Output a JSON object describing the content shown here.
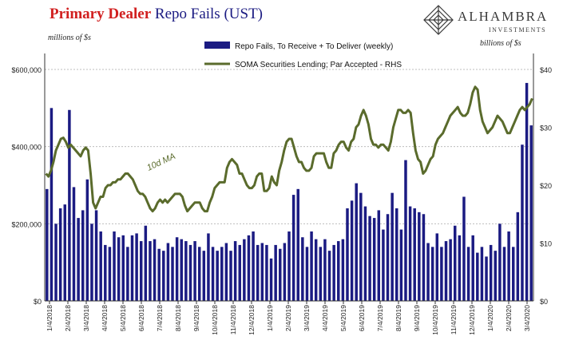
{
  "header": {
    "title_part1": "Primary Dealer",
    "title_part2": "Repo Fails (UST)",
    "left_unit": "millions of $s",
    "right_unit": "billions of $s"
  },
  "logo": {
    "name": "ALHAMBRA",
    "sub": "INVESTMENTS"
  },
  "colors": {
    "bars": "#1b1b82",
    "line": "#5a6b2c",
    "grid": "#bdbdbd",
    "title_red": "#d11f1f",
    "title_blue": "#1b1b82"
  },
  "chart_data": {
    "type": "bar",
    "title": "Primary Dealer Repo Fails (UST)",
    "ylabel": "millions of $s",
    "y2label": "billions of $s",
    "ylim": [
      0,
      600000
    ],
    "y2lim": [
      0,
      40
    ],
    "y_ticks": [
      "$0",
      "$200,000",
      "$400,000",
      "$600,000"
    ],
    "y2_ticks": [
      "$0",
      "$10",
      "$20",
      "$30",
      "$40"
    ],
    "x_ticks": [
      "1/4/2018",
      "2/4/2018",
      "3/4/2018",
      "4/4/2018",
      "5/4/2018",
      "6/4/2018",
      "7/4/2018",
      "8/4/2018",
      "9/4/2018",
      "10/4/2018",
      "11/4/2018",
      "12/4/2018",
      "1/4/2019",
      "2/4/2019",
      "3/4/2019",
      "4/4/2019",
      "5/4/2019",
      "6/4/2019",
      "7/4/2019",
      "8/4/2019",
      "9/4/2019",
      "10/4/2019",
      "11/4/2019",
      "12/4/2019",
      "1/4/2020",
      "2/4/2020",
      "3/4/2020"
    ],
    "legend_position": "top-center",
    "annotation": "10d MA",
    "series": [
      {
        "name": "Repo Fails, To Receive + To Deliver (weekly)",
        "kind": "bar",
        "axis": "left",
        "values": [
          290000,
          500000,
          200000,
          240000,
          250000,
          495000,
          295000,
          215000,
          235000,
          315000,
          200000,
          235000,
          180000,
          145000,
          140000,
          180000,
          165000,
          170000,
          140000,
          170000,
          175000,
          155000,
          195000,
          155000,
          160000,
          135000,
          130000,
          150000,
          140000,
          165000,
          160000,
          155000,
          145000,
          155000,
          140000,
          130000,
          175000,
          140000,
          130000,
          140000,
          150000,
          130000,
          155000,
          145000,
          160000,
          170000,
          180000,
          145000,
          150000,
          145000,
          110000,
          145000,
          135000,
          150000,
          180000,
          275000,
          290000,
          165000,
          140000,
          180000,
          160000,
          140000,
          160000,
          130000,
          145000,
          155000,
          160000,
          240000,
          260000,
          305000,
          280000,
          245000,
          220000,
          215000,
          235000,
          185000,
          225000,
          280000,
          240000,
          185000,
          365000,
          245000,
          240000,
          230000,
          225000,
          150000,
          140000,
          175000,
          140000,
          155000,
          160000,
          195000,
          170000,
          270000,
          140000,
          170000,
          125000,
          140000,
          115000,
          145000,
          130000,
          200000,
          140000,
          180000,
          140000,
          230000,
          405000,
          565000,
          455000
        ]
      },
      {
        "name": "SOMA Securities Lending; Par Accepted - RHS",
        "kind": "line",
        "axis": "right",
        "values": [
          22,
          21.5,
          22.5,
          24,
          26,
          27,
          28,
          28.2,
          27.5,
          26.5,
          27,
          26.5,
          26,
          25.5,
          25,
          26,
          26.5,
          26,
          22,
          17,
          16,
          17,
          18,
          18,
          19.5,
          20,
          20,
          20.5,
          20.5,
          21,
          21,
          21.5,
          22,
          22,
          21.5,
          21,
          20,
          19,
          18.5,
          18.5,
          18,
          17,
          16,
          15.5,
          16,
          17,
          17.5,
          17,
          17.5,
          17,
          17.5,
          18,
          18.5,
          18.5,
          18.5,
          18,
          16.5,
          15.5,
          16,
          16.5,
          17,
          17,
          17,
          16,
          15.5,
          15.5,
          17,
          18,
          19.5,
          20,
          20.5,
          20.5,
          20.5,
          23,
          24,
          24.5,
          24,
          23.5,
          22,
          22,
          21,
          20,
          19.5,
          19.5,
          20,
          21.5,
          22,
          22,
          19,
          19,
          19.5,
          21.5,
          20.5,
          20,
          22.5,
          24,
          26,
          27.5,
          28,
          28,
          26.5,
          25,
          24,
          24,
          23,
          22.5,
          22.5,
          23,
          25,
          25.5,
          25.5,
          25.5,
          25.5,
          24,
          23,
          23,
          25.5,
          26,
          27,
          27.5,
          27.5,
          26.5,
          26,
          27.5,
          28,
          30,
          30.5,
          32,
          33,
          32,
          30.5,
          28,
          27,
          27,
          26.5,
          27,
          27,
          26.5,
          26,
          27.5,
          30,
          31.5,
          33,
          33,
          32.5,
          32.5,
          33,
          32.5,
          29,
          26,
          24.5,
          24,
          22,
          22.5,
          23.5,
          24.5,
          25,
          27,
          28,
          28.5,
          29,
          30,
          31,
          32,
          32.5,
          33,
          33.5,
          32.5,
          32,
          32,
          32.5,
          34,
          36,
          37,
          36.5,
          33,
          31,
          30,
          29,
          29.5,
          30,
          31,
          32,
          31.5,
          31,
          30,
          29,
          29,
          30,
          31,
          32,
          33,
          33.5,
          33,
          33.5,
          34,
          35
        ]
      }
    ]
  }
}
